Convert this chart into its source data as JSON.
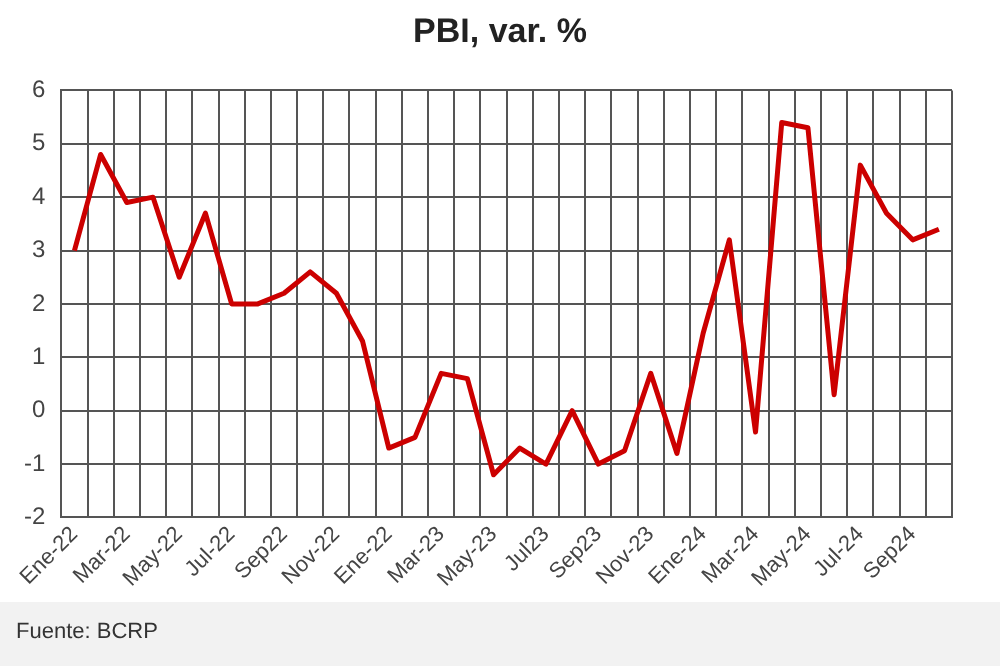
{
  "chart_data": {
    "type": "line",
    "title": "PBI, var. %",
    "categories": [
      "Ene-22",
      null,
      "Mar-22",
      null,
      "May-22",
      null,
      "Jul-22",
      null,
      "Sep22",
      null,
      "Nov-22",
      null,
      "Ene-22",
      null,
      "Mar-23",
      null,
      "May-23",
      null,
      "Jul23",
      null,
      "Sep23",
      null,
      "Nov-23",
      null,
      "Ene-24",
      null,
      "Mar-24",
      null,
      "May-24",
      null,
      "Jul-24",
      null,
      "Sep24",
      null
    ],
    "series": [
      {
        "color": "#cc0000",
        "values": [
          3.0,
          4.8,
          3.9,
          4.0,
          2.5,
          3.7,
          2.0,
          2.0,
          2.2,
          2.6,
          2.2,
          1.3,
          -0.7,
          -0.5,
          0.7,
          0.6,
          -1.2,
          -0.7,
          -1.0,
          0.0,
          -1.0,
          -0.75,
          0.7,
          -0.8,
          1.45,
          3.2,
          -0.4,
          5.4,
          5.3,
          0.3,
          4.6,
          3.7,
          3.2,
          3.4
        ]
      }
    ],
    "ylim": [
      -2,
      6
    ],
    "yticks": [
      -2,
      -1,
      0,
      1,
      2,
      3,
      4,
      5,
      6
    ],
    "grid": true,
    "legend": false,
    "marker": "none",
    "annotations": [
      "Fuente: BCRP"
    ]
  }
}
